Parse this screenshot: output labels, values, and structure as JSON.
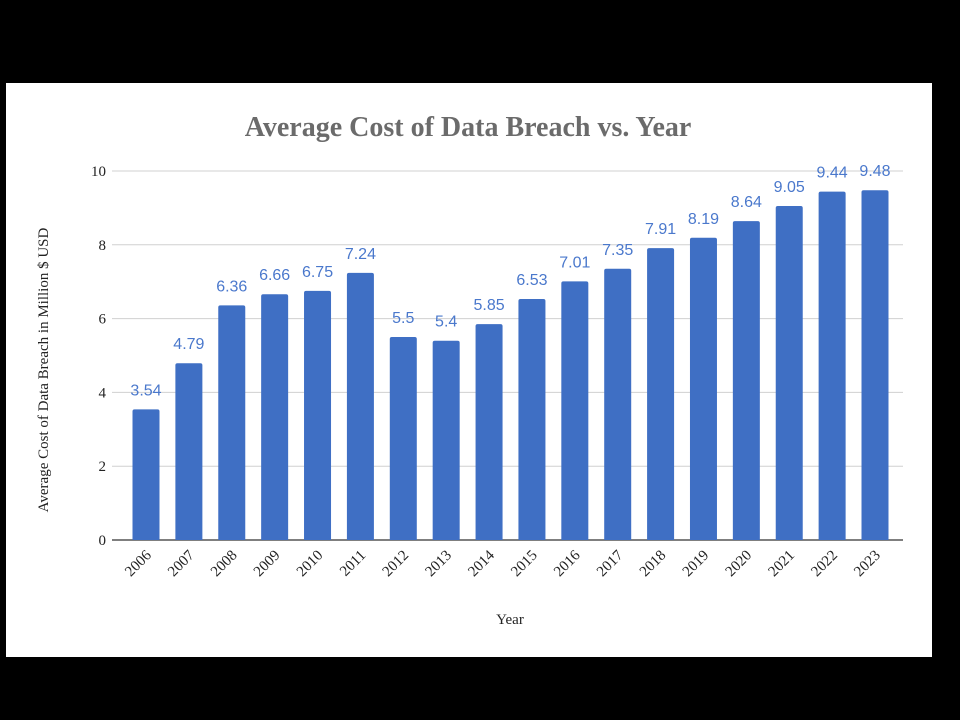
{
  "chart_data": {
    "type": "bar",
    "title": "Average Cost of Data Breach vs. Year",
    "xlabel": "Year",
    "ylabel": "Average Cost of Data Breach in Million $ USD",
    "categories": [
      "2006",
      "2007",
      "2008",
      "2009",
      "2010",
      "2011",
      "2012",
      "2013",
      "2014",
      "2015",
      "2016",
      "2017",
      "2018",
      "2019",
      "2020",
      "2021",
      "2022",
      "2023"
    ],
    "values": [
      3.54,
      4.79,
      6.36,
      6.66,
      6.75,
      7.24,
      5.5,
      5.4,
      5.85,
      6.53,
      7.01,
      7.35,
      7.91,
      8.19,
      8.64,
      9.05,
      9.44,
      9.48
    ],
    "ylim": [
      0,
      10
    ],
    "yticks": [
      0,
      2,
      4,
      6,
      8,
      10
    ],
    "grid": true,
    "data_labels": true,
    "legend": "none",
    "colors": {
      "bar": "#3f6fc4",
      "label": "#4a78cc",
      "grid": "#d0d0d0",
      "title": "#6b6b6b"
    }
  }
}
